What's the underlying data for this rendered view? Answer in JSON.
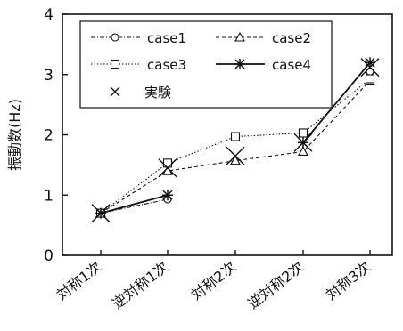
{
  "chart_data": {
    "type": "line",
    "ylabel": "振動数(Hz)",
    "ylim": [
      0,
      4
    ],
    "yticks": [
      "0",
      "1",
      "2",
      "3",
      "4"
    ],
    "grid": false,
    "legend_placement": "top-left inside",
    "categories": [
      "対称1次",
      "逆対称1次",
      "対称2次",
      "逆対称2次",
      "対称3次"
    ],
    "series": [
      {
        "name": "case1",
        "marker": "circle",
        "line": "dash-dot",
        "connect_gap_after": 1,
        "values": [
          0.7,
          0.93,
          null,
          null,
          3.05
        ]
      },
      {
        "name": "case2",
        "marker": "triangle",
        "line": "dashed",
        "connect_gap_after": -1,
        "values": [
          0.7,
          1.4,
          1.57,
          1.72,
          2.9
        ]
      },
      {
        "name": "case3",
        "marker": "square",
        "line": "dotted",
        "connect_gap_after": -1,
        "values": [
          0.7,
          1.53,
          1.97,
          2.03,
          2.93
        ]
      },
      {
        "name": "case4",
        "marker": "asterisk",
        "line": "solid",
        "connect_gap_after": 1,
        "values": [
          0.7,
          1.0,
          null,
          1.87,
          3.2
        ]
      },
      {
        "name": "実験",
        "marker": "cross",
        "line": "none",
        "connect_gap_after": -1,
        "values": [
          0.7,
          1.45,
          1.65,
          1.87,
          3.12
        ]
      }
    ]
  }
}
